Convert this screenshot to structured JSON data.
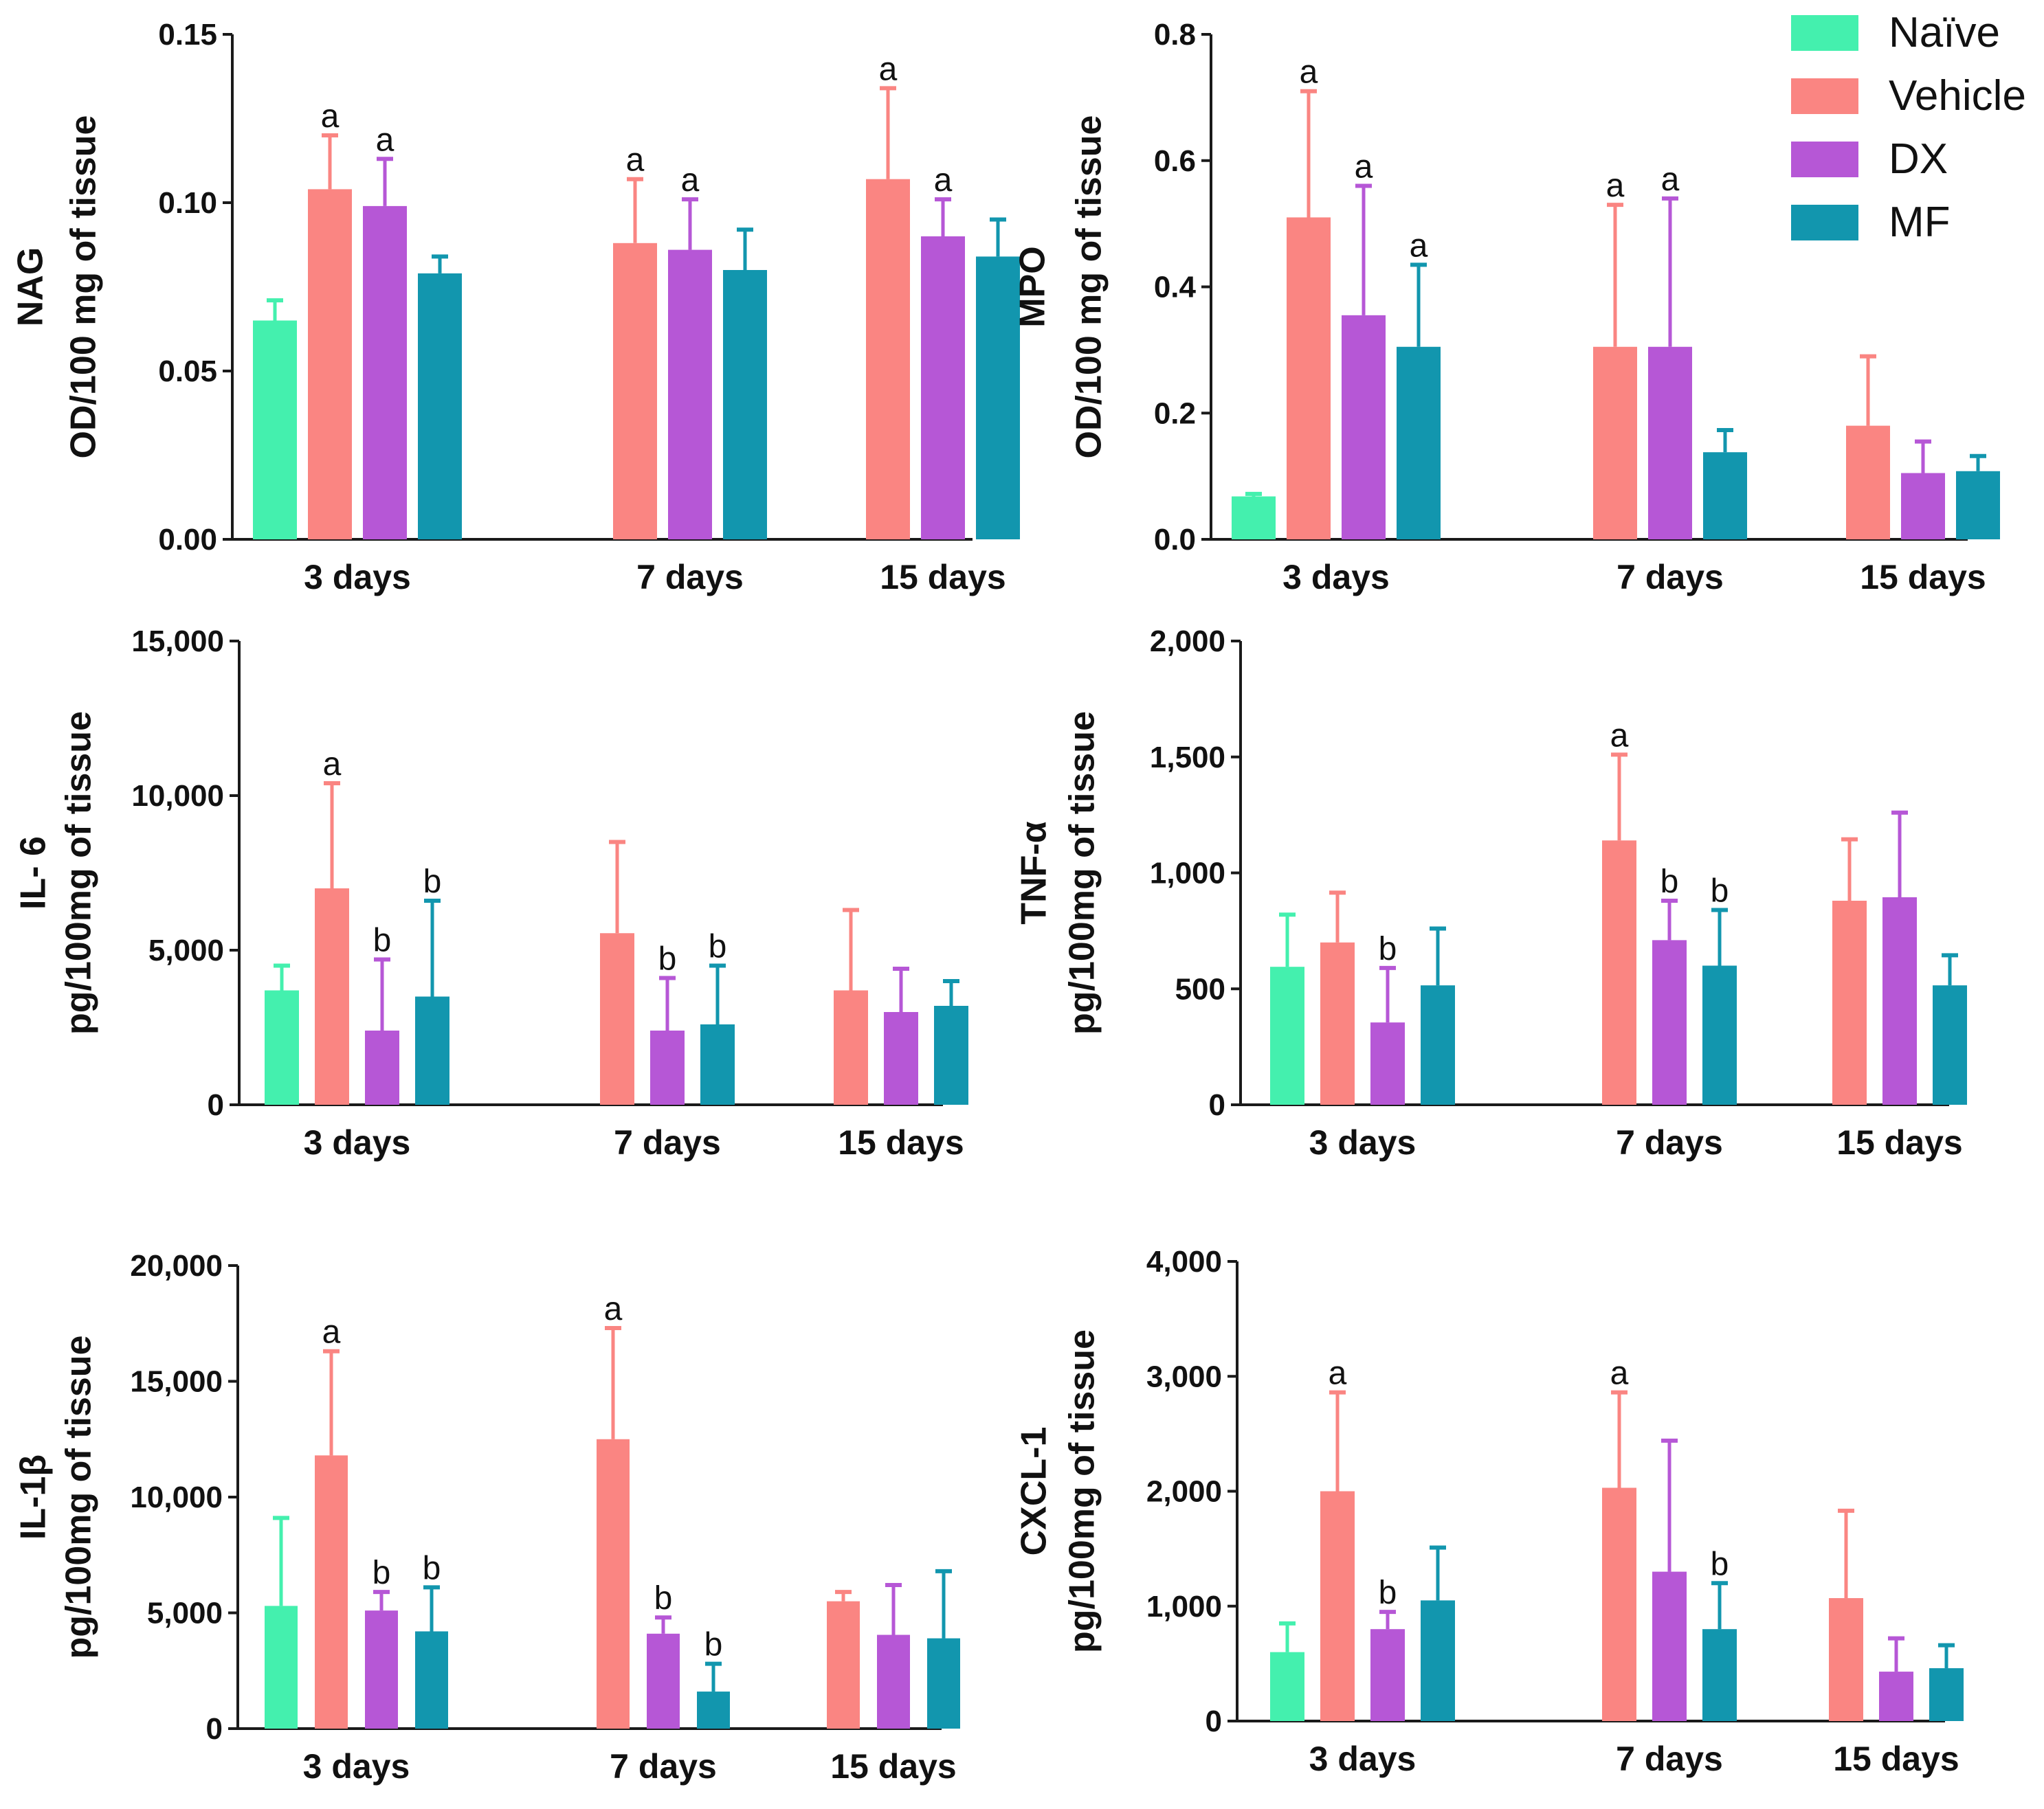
{
  "legend": [
    {
      "name": "Naïve",
      "color": "#44F0AE"
    },
    {
      "name": "Vehicle",
      "color": "#FA8582"
    },
    {
      "name": "DX",
      "color": "#B657D6"
    },
    {
      "name": "MF",
      "color": "#1296AE"
    }
  ],
  "chart_data": [
    {
      "type": "bar",
      "id": "nag",
      "ylabel": [
        "NAG",
        "OD/100 mg of tissue"
      ],
      "categories": [
        "3 days",
        "7 days",
        "15 days"
      ],
      "ylim": [
        0,
        0.15
      ],
      "yticks": [
        "0.00",
        "0.05",
        "0.10",
        "0.15"
      ],
      "yticks_values": [
        0,
        0.05,
        0.1,
        0.15
      ],
      "series": [
        {
          "name": "Naïve",
          "values": [
            0.065,
            null,
            null
          ],
          "errors": [
            0.071,
            null,
            null
          ],
          "labels": [
            "",
            "",
            ""
          ]
        },
        {
          "name": "Vehicle",
          "values": [
            0.104,
            0.088,
            0.107
          ],
          "errors": [
            0.12,
            0.107,
            0.134
          ],
          "labels": [
            "a",
            "a",
            "a"
          ]
        },
        {
          "name": "DX",
          "values": [
            0.099,
            0.086,
            0.09
          ],
          "errors": [
            0.113,
            0.101,
            0.101
          ],
          "labels": [
            "a",
            "a",
            "a"
          ]
        },
        {
          "name": "MF",
          "values": [
            0.079,
            0.08,
            0.084
          ],
          "errors": [
            0.084,
            0.092,
            0.095
          ],
          "labels": [
            "",
            "",
            ""
          ]
        }
      ]
    },
    {
      "type": "bar",
      "id": "mpo",
      "ylabel": [
        "MPO",
        "OD/100 mg of tissue"
      ],
      "categories": [
        "3 days",
        "7 days",
        "15 days"
      ],
      "ylim": [
        0,
        0.8
      ],
      "yticks": [
        "0.0",
        "0.2",
        "0.4",
        "0.6",
        "0.8"
      ],
      "yticks_values": [
        0,
        0.2,
        0.4,
        0.6,
        0.8
      ],
      "series": [
        {
          "name": "Naïve",
          "values": [
            0.068,
            null,
            null
          ],
          "errors": [
            0.072,
            null,
            null
          ],
          "labels": [
            "",
            "",
            ""
          ]
        },
        {
          "name": "Vehicle",
          "values": [
            0.51,
            0.305,
            0.18
          ],
          "errors": [
            0.71,
            0.53,
            0.29
          ],
          "labels": [
            "a",
            "a",
            ""
          ]
        },
        {
          "name": "DX",
          "values": [
            0.355,
            0.305,
            0.105
          ],
          "errors": [
            0.56,
            0.54,
            0.155
          ],
          "labels": [
            "a",
            "a",
            ""
          ]
        },
        {
          "name": "MF",
          "values": [
            0.305,
            0.138,
            0.108
          ],
          "errors": [
            0.435,
            0.173,
            0.132
          ],
          "labels": [
            "a",
            "",
            ""
          ]
        }
      ]
    },
    {
      "type": "bar",
      "id": "il6",
      "ylabel": [
        "IL- 6",
        "pg/100mg of tissue"
      ],
      "categories": [
        "3 days",
        "7 days",
        "15 days"
      ],
      "ylim": [
        0,
        15000
      ],
      "yticks": [
        "0",
        "5,000",
        "10,000",
        "15,000"
      ],
      "yticks_values": [
        0,
        5000,
        10000,
        15000
      ],
      "series": [
        {
          "name": "Naïve",
          "values": [
            3700,
            null,
            null
          ],
          "errors": [
            4500,
            null,
            null
          ],
          "labels": [
            "",
            "",
            ""
          ]
        },
        {
          "name": "Vehicle",
          "values": [
            7000,
            5550,
            3700
          ],
          "errors": [
            10400,
            8500,
            6300
          ],
          "labels": [
            "a",
            "",
            ""
          ]
        },
        {
          "name": "DX",
          "values": [
            2400,
            2400,
            3000
          ],
          "errors": [
            4700,
            4100,
            4400
          ],
          "labels": [
            "b",
            "b",
            ""
          ]
        },
        {
          "name": "MF",
          "values": [
            3500,
            2600,
            3200
          ],
          "errors": [
            6600,
            4500,
            4000
          ],
          "labels": [
            "b",
            "b",
            ""
          ]
        }
      ]
    },
    {
      "type": "bar",
      "id": "tnf",
      "ylabel": [
        "TNF-α",
        "pg/100mg of tissue"
      ],
      "categories": [
        "3 days",
        "7 days",
        "15 days"
      ],
      "ylim": [
        0,
        2000
      ],
      "yticks": [
        "0",
        "500",
        "1,000",
        "1,500",
        "2,000"
      ],
      "yticks_values": [
        0,
        500,
        1000,
        1500,
        2000
      ],
      "series": [
        {
          "name": "Naïve",
          "values": [
            595,
            null,
            null
          ],
          "errors": [
            820,
            null,
            null
          ],
          "labels": [
            "",
            "",
            ""
          ]
        },
        {
          "name": "Vehicle",
          "values": [
            700,
            1140,
            880
          ],
          "errors": [
            915,
            1510,
            1145
          ],
          "labels": [
            "",
            "a",
            ""
          ]
        },
        {
          "name": "DX",
          "values": [
            355,
            710,
            895
          ],
          "errors": [
            590,
            880,
            1260
          ],
          "labels": [
            "b",
            "b",
            ""
          ]
        },
        {
          "name": "MF",
          "values": [
            515,
            600,
            515
          ],
          "errors": [
            760,
            840,
            645
          ],
          "labels": [
            "",
            "b",
            ""
          ]
        }
      ]
    },
    {
      "type": "bar",
      "id": "il1b",
      "ylabel": [
        "IL-1β",
        "pg/100mg of tissue"
      ],
      "categories": [
        "3 days",
        "7 days",
        "15 days"
      ],
      "ylim": [
        0,
        20000
      ],
      "yticks": [
        "0",
        "5,000",
        "10,000",
        "15,000",
        "20,000"
      ],
      "yticks_values": [
        0,
        5000,
        10000,
        15000,
        20000
      ],
      "series": [
        {
          "name": "Naïve",
          "values": [
            5300,
            null,
            null
          ],
          "errors": [
            9100,
            null,
            null
          ],
          "labels": [
            "",
            "",
            ""
          ]
        },
        {
          "name": "Vehicle",
          "values": [
            11800,
            12500,
            5500
          ],
          "errors": [
            16300,
            17300,
            5900
          ],
          "labels": [
            "a",
            "a",
            ""
          ]
        },
        {
          "name": "DX",
          "values": [
            5100,
            4100,
            4050
          ],
          "errors": [
            5900,
            4800,
            6200
          ],
          "labels": [
            "b",
            "b",
            ""
          ]
        },
        {
          "name": "MF",
          "values": [
            4200,
            1600,
            3900
          ],
          "errors": [
            6100,
            2800,
            6800
          ],
          "labels": [
            "b",
            "b",
            ""
          ]
        }
      ]
    },
    {
      "type": "bar",
      "id": "cxcl1",
      "ylabel": [
        "CXCL-1",
        "pg/100mg of tissue"
      ],
      "categories": [
        "3 days",
        "7 days",
        "15 days"
      ],
      "ylim": [
        0,
        4000
      ],
      "yticks": [
        "0",
        "1,000",
        "2,000",
        "3,000",
        "4,000"
      ],
      "yticks_values": [
        0,
        1000,
        2000,
        3000,
        4000
      ],
      "series": [
        {
          "name": "Naïve",
          "values": [
            600,
            null,
            null
          ],
          "errors": [
            850,
            null,
            null
          ],
          "labels": [
            "",
            "",
            ""
          ]
        },
        {
          "name": "Vehicle",
          "values": [
            2000,
            2030,
            1070
          ],
          "errors": [
            2860,
            2860,
            1830
          ],
          "labels": [
            "a",
            "a",
            ""
          ]
        },
        {
          "name": "DX",
          "values": [
            800,
            1300,
            430
          ],
          "errors": [
            950,
            2440,
            720
          ],
          "labels": [
            "b",
            "",
            ""
          ]
        },
        {
          "name": "MF",
          "values": [
            1050,
            800,
            460
          ],
          "errors": [
            1510,
            1200,
            660
          ],
          "labels": [
            "",
            "b",
            ""
          ]
        }
      ]
    }
  ]
}
